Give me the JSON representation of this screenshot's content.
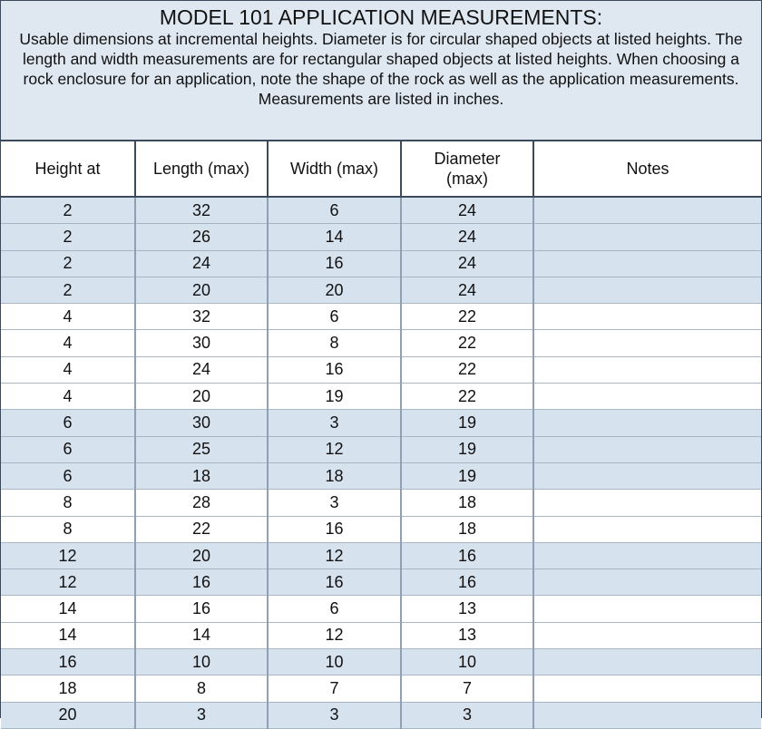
{
  "title": "MODEL 101 APPLICATION MEASUREMENTS:",
  "description": "Usable dimensions at incremental heights. Diameter is for circular shaped objects at listed heights. The length and width measurements are for rectangular shaped objects at listed heights. When choosing a rock enclosure for an application, note the shape of the rock as well as the application measurements. Measurements are listed in inches.",
  "colors": {
    "header_bg": "#dfe7f1",
    "band_blue": "#d7e2ef",
    "border": "#3c4a5c"
  },
  "columns": [
    "Height at",
    "Length (max)",
    "Width (max)",
    "Diameter (max)",
    "Notes"
  ],
  "rows": [
    [
      "2",
      "32",
      "6",
      "24",
      ""
    ],
    [
      "2",
      "26",
      "14",
      "24",
      ""
    ],
    [
      "2",
      "24",
      "16",
      "24",
      ""
    ],
    [
      "2",
      "20",
      "20",
      "24",
      ""
    ],
    [
      "4",
      "32",
      "6",
      "22",
      ""
    ],
    [
      "4",
      "30",
      "8",
      "22",
      ""
    ],
    [
      "4",
      "24",
      "16",
      "22",
      ""
    ],
    [
      "4",
      "20",
      "19",
      "22",
      ""
    ],
    [
      "6",
      "30",
      "3",
      "19",
      ""
    ],
    [
      "6",
      "25",
      "12",
      "19",
      ""
    ],
    [
      "6",
      "18",
      "18",
      "19",
      ""
    ],
    [
      "8",
      "28",
      "3",
      "18",
      ""
    ],
    [
      "8",
      "22",
      "16",
      "18",
      ""
    ],
    [
      "12",
      "20",
      "12",
      "16",
      ""
    ],
    [
      "12",
      "16",
      "16",
      "16",
      ""
    ],
    [
      "14",
      "16",
      "6",
      "13",
      ""
    ],
    [
      "14",
      "14",
      "12",
      "13",
      ""
    ],
    [
      "16",
      "10",
      "10",
      "10",
      ""
    ],
    [
      "18",
      "8",
      "7",
      "7",
      ""
    ],
    [
      "20",
      "3",
      "3",
      "3",
      ""
    ]
  ]
}
